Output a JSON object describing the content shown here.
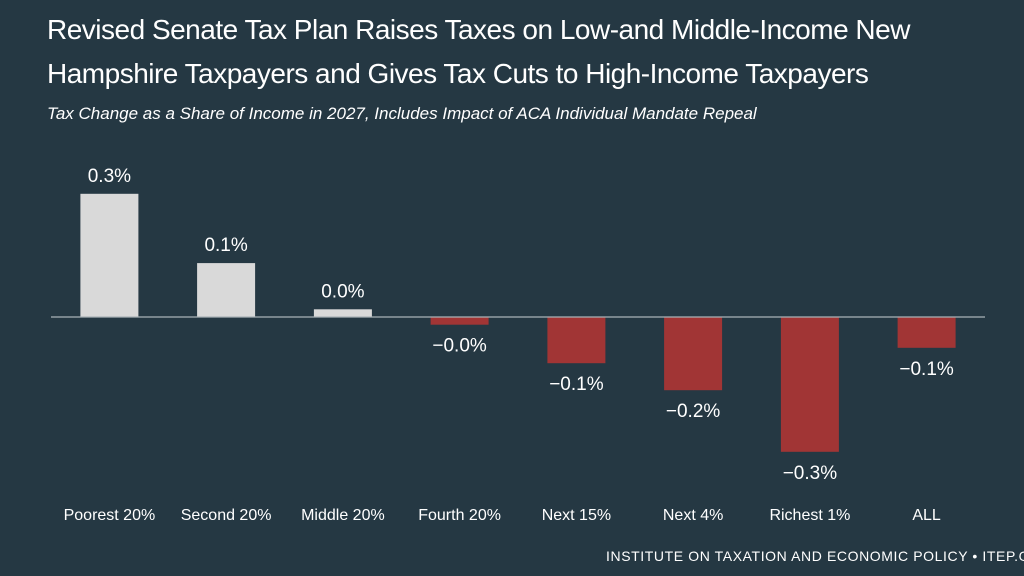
{
  "header": {
    "title_line1": "Revised Senate Tax Plan Raises Taxes on Low-and Middle-Income New",
    "title_line2": "Hampshire Taxpayers and Gives Tax Cuts to High-Income Taxpayers",
    "subtitle": "Tax Change as a Share of Income in 2027, Includes Impact of ACA Individual Mandate Repeal"
  },
  "footer": {
    "credit": "INSTITUTE ON TAXATION AND ECONOMIC POLICY • ITEP.OR"
  },
  "colors": {
    "background": "#253843",
    "positive_bar": "#d9d9d9",
    "negative_bar": "#a13535",
    "axis": "#aab3b8",
    "text": "#ffffff"
  },
  "chart_data": {
    "type": "bar",
    "title": "Revised Senate Tax Plan Raises Taxes on Low-and Middle-Income New Hampshire Taxpayers and Gives Tax Cuts to High-Income Taxpayers",
    "subtitle": "Tax Change as a Share of Income in 2027, Includes Impact of ACA Individual Mandate Repeal",
    "categories": [
      "Poorest 20%",
      "Second 20%",
      "Middle 20%",
      "Fourth 20%",
      "Next 15%",
      "Next 4%",
      "Richest 1%",
      "ALL"
    ],
    "values": [
      0.32,
      0.14,
      0.02,
      -0.02,
      -0.12,
      -0.19,
      -0.35,
      -0.08
    ],
    "labels": [
      "0.3%",
      "0.1%",
      "0.0%",
      "−0.0%",
      "−0.1%",
      "−0.2%",
      "−0.3%",
      "−0.1%"
    ],
    "xlabel": "",
    "ylabel": "",
    "ylim": [
      -0.4,
      0.4
    ],
    "grid": false,
    "legend": "none"
  }
}
